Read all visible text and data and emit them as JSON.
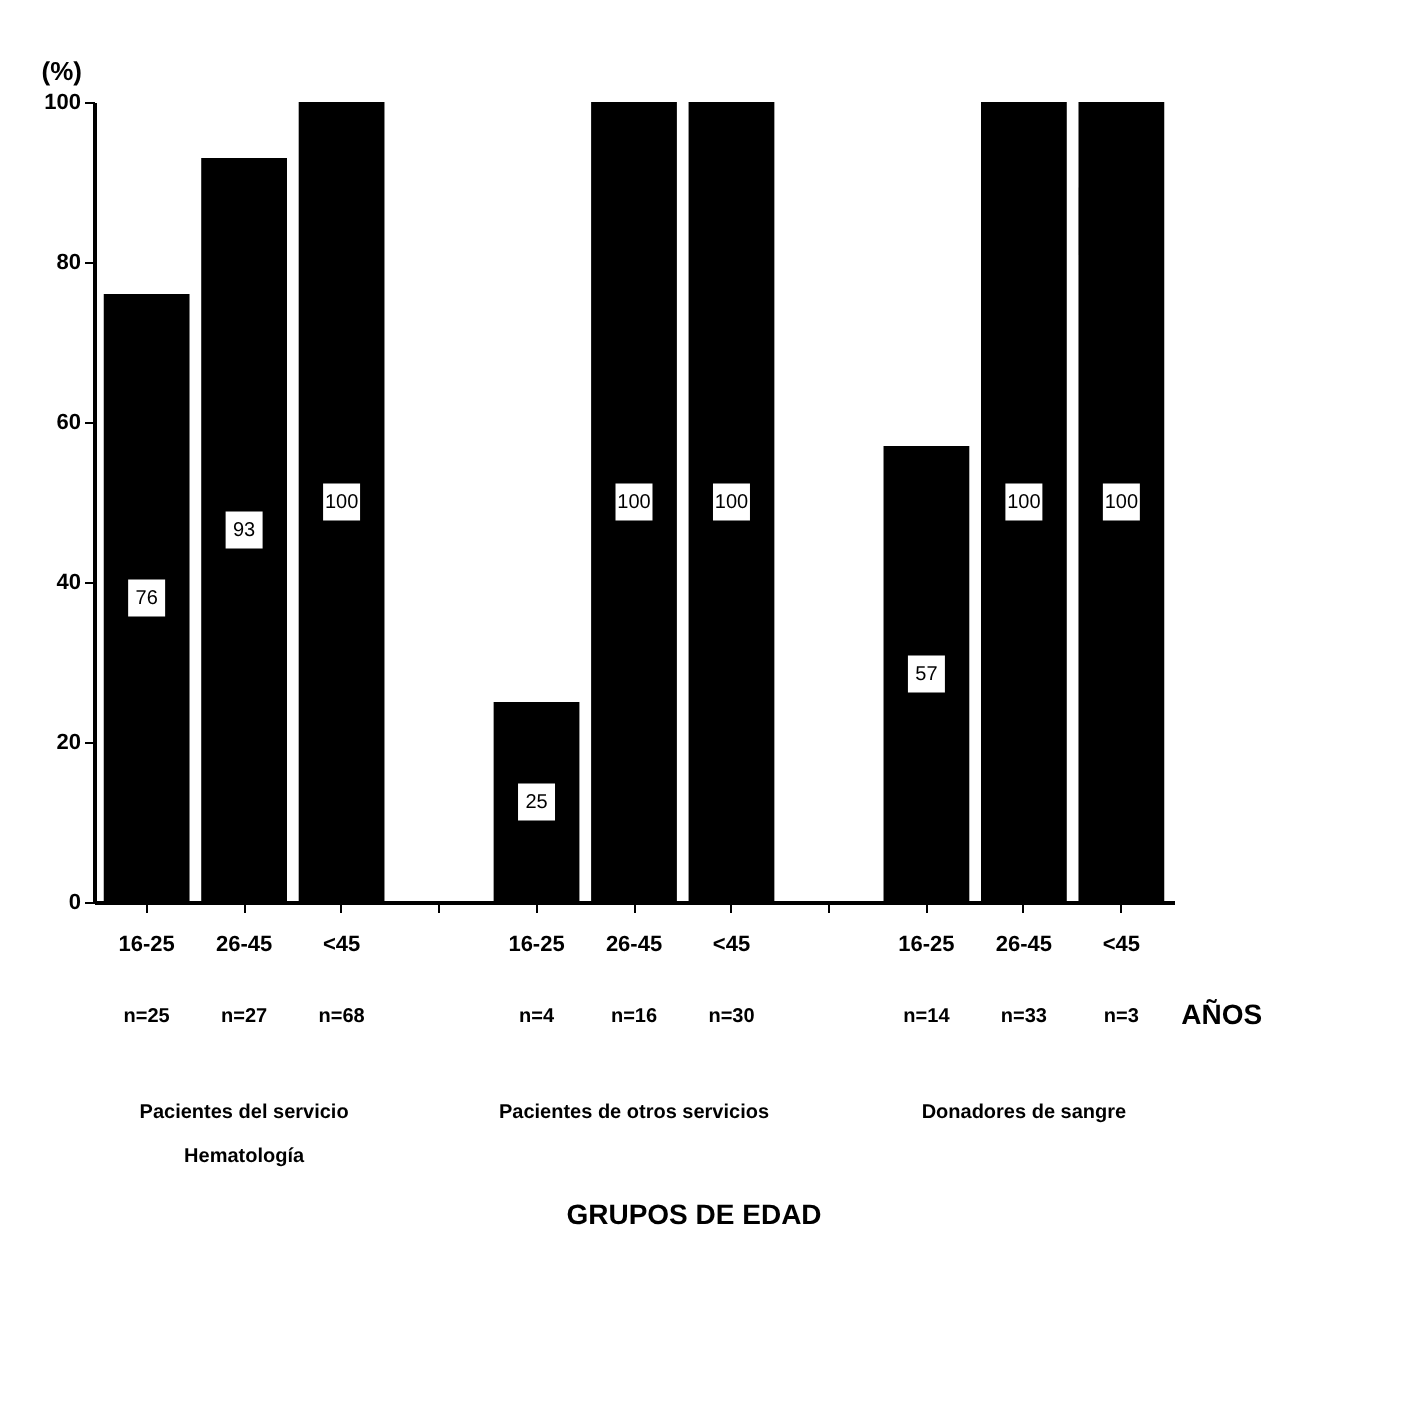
{
  "chart_data": {
    "type": "bar",
    "ylabel": "(%)",
    "categories": [
      "16-25",
      "26-45",
      "<45",
      null,
      "16-25",
      "26-45",
      "<45",
      null,
      "16-25",
      "26-45",
      "<45"
    ],
    "values": [
      76,
      93,
      100,
      null,
      25,
      100,
      100,
      null,
      57,
      100,
      100
    ],
    "color": "#000000",
    "ylim": [
      0,
      100
    ],
    "yticks": [
      0,
      20,
      40,
      60,
      80,
      100
    ],
    "data_labels": true,
    "annotations": [
      "n=25",
      "n=27",
      "n=68",
      "n=4",
      "n=16",
      "n=30",
      "n=14",
      "n=33",
      "n=3",
      "Pacientes del servicio\nHematología",
      "Pacientes de otros servicios",
      "Donadores de sangre",
      "AÑOS",
      "GRUPOS DE EDAD"
    ]
  }
}
